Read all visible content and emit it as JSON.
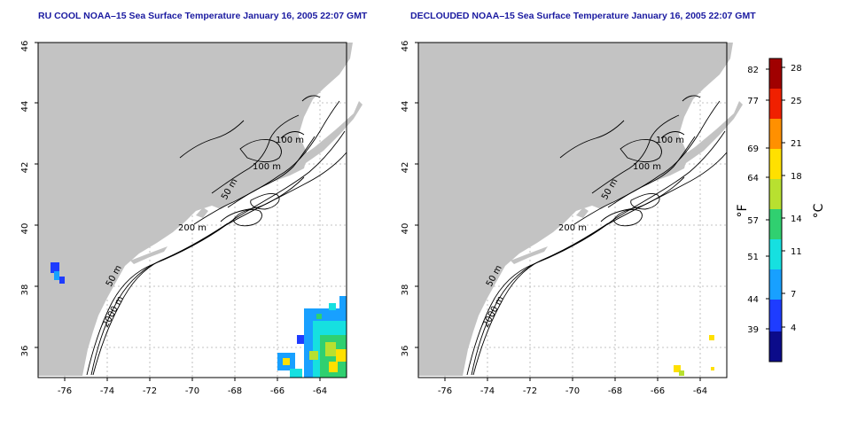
{
  "left_map": {
    "title": "RU COOL NOAA–15 Sea Surface Temperature January 16, 2005 22:07 GMT",
    "x_ticks": [
      "-76",
      "-74",
      "-72",
      "-70",
      "-68",
      "-66",
      "-64"
    ],
    "y_ticks": [
      "46",
      "44",
      "42",
      "40",
      "38",
      "36"
    ],
    "contour_labels": [
      "100 m",
      "100 m",
      "50 m",
      "200 m",
      "50 m",
      "2000 m"
    ]
  },
  "right_map": {
    "title": "DECLOUDED NOAA–15 Sea Surface Temperature January 16, 2005 22:07 GMT",
    "x_ticks": [
      "-76",
      "-74",
      "-72",
      "-70",
      "-68",
      "-66",
      "-64"
    ],
    "y_ticks": [
      "46",
      "44",
      "42",
      "40",
      "38",
      "36"
    ],
    "contour_labels": [
      "100 m",
      "100 m",
      "50 m",
      "200 m",
      "50 m",
      "2000 m"
    ]
  },
  "colorbar": {
    "left_unit": "°F",
    "right_unit": "°C",
    "f_ticks": [
      "82",
      "77",
      "69",
      "64",
      "57",
      "51",
      "44",
      "39"
    ],
    "c_ticks": [
      "28",
      "25",
      "21",
      "18",
      "14",
      "11",
      "7",
      "4"
    ],
    "colors": [
      "#0b0b8a",
      "#1e3cff",
      "#18a0ff",
      "#16e0e0",
      "#30d070",
      "#b8e030",
      "#ffe000",
      "#ff9000",
      "#f02000",
      "#a00000"
    ]
  },
  "colors": {
    "land": "#c3c3c3",
    "ocean": "#ffffff",
    "contour": "#000000",
    "grid": "#b0b0b0",
    "title": "#1a1aa0"
  }
}
